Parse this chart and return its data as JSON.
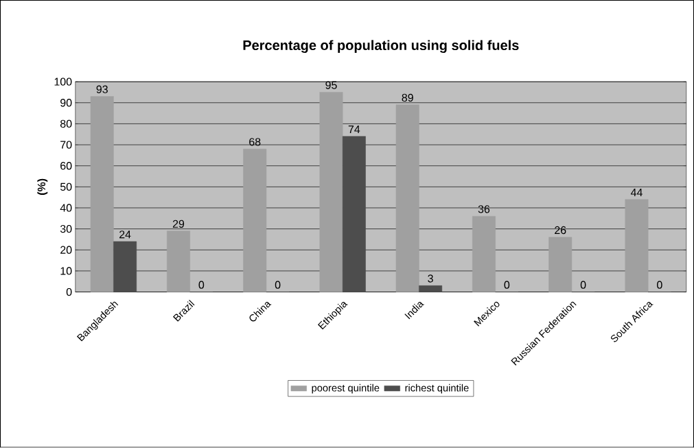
{
  "chart_data": {
    "type": "bar",
    "title": "Percentage of population using solid fuels",
    "ylabel": "(%)",
    "categories": [
      "Bangladesh",
      "Brazil",
      "China",
      "Ethiopia",
      "India",
      "Mexico",
      "Russian Federation",
      "South Africa"
    ],
    "series": [
      {
        "name": "poorest quintile",
        "color": "#a0a0a0",
        "values": [
          93,
          29,
          68,
          95,
          89,
          36,
          26,
          44
        ]
      },
      {
        "name": "richest quintile",
        "color": "#4d4d4d",
        "values": [
          24,
          0,
          0,
          74,
          3,
          0,
          0,
          0
        ]
      }
    ],
    "ylim": [
      0,
      100
    ],
    "yticks": [
      0,
      10,
      20,
      30,
      40,
      50,
      60,
      70,
      80,
      90,
      100
    ],
    "grid": "y",
    "legend": "bottom",
    "data_labels": true
  }
}
